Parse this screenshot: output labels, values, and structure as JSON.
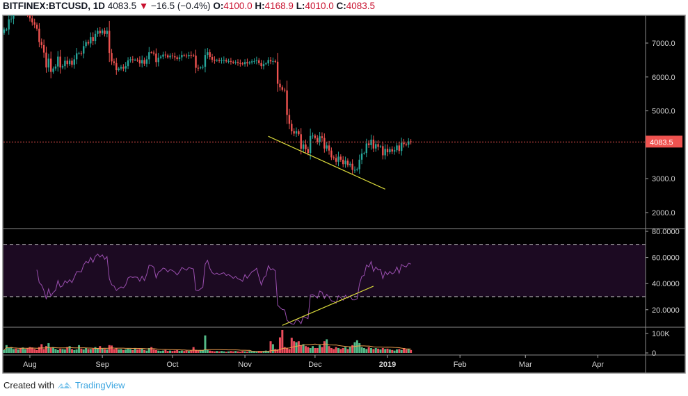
{
  "header": {
    "symbol": "BITFINEX:BTCUSD, 1D",
    "last": "4083.5",
    "change": "−16.5 (−0.4%)",
    "o_label": "O:",
    "o": "4100.0",
    "h_label": "H:",
    "h": "4168.9",
    "l_label": "L:",
    "l": "4010.0",
    "c_label": "C:",
    "c": "4083.5"
  },
  "footer": {
    "created_with": "Created with",
    "brand": "TradingView"
  },
  "colors": {
    "up": "#26a69a",
    "down": "#ef5350",
    "vol_up": "#53b987",
    "vol_down": "#eb4d5c",
    "rsi": "#9b4fb0",
    "rsi_band": "#1c0a22",
    "trendline": "#d8d83a",
    "vol_ma": "#f0a050",
    "background": "#000000"
  },
  "chart_data": [
    {
      "type": "candlestick",
      "pane": "price",
      "interval": "1D",
      "start_date": "2018-07-21",
      "xlim": [
        "2018-07-20",
        "2019-04-20"
      ],
      "ylim": [
        1500,
        7820
      ],
      "first_open": 7300,
      "last_candle": {
        "open": 4100.0,
        "high": 4168.9,
        "low": 4010.0,
        "close": 4083.5
      },
      "closes": [
        7400,
        7400,
        7700,
        7720,
        8200,
        8180,
        8230,
        8200,
        8200,
        8230,
        7940,
        7730,
        7610,
        7540,
        7420,
        7030,
        6940,
        6720,
        6280,
        6540,
        6150,
        6250,
        6310,
        6600,
        6280,
        6320,
        6480,
        6380,
        6480,
        6360,
        6520,
        6700,
        6700,
        6690,
        6910,
        7030,
        6990,
        7180,
        7060,
        7270,
        7360,
        7290,
        7370,
        7270,
        7360,
        6710,
        6460,
        6410,
        6200,
        6250,
        6290,
        6250,
        6320,
        6490,
        6520,
        6500,
        6510,
        6500,
        6400,
        6500,
        6390,
        6520,
        6730,
        6720,
        6690,
        6440,
        6570,
        6600,
        6660,
        6640,
        6580,
        6630,
        6610,
        6580,
        6530,
        6580,
        6650,
        6630,
        6610,
        6650,
        6640,
        6630,
        6270,
        6260,
        6280,
        6300,
        6650,
        6730,
        6590,
        6510,
        6480,
        6500,
        6470,
        6490,
        6500,
        6460,
        6470,
        6450,
        6420,
        6440,
        6410,
        6400,
        6380,
        6440,
        6400,
        6430,
        6460,
        6470,
        6490,
        6410,
        6320,
        6380,
        6400,
        6500,
        6460,
        6470,
        6450,
        5800,
        5700,
        5620,
        5600,
        4880,
        4620,
        4400,
        4330,
        4400,
        4310,
        3880,
        4010,
        3870,
        3760,
        4260,
        4270,
        4200,
        4090,
        4250,
        4200,
        3890,
        3980,
        3830,
        3630,
        3610,
        3500,
        3650,
        3560,
        3430,
        3530,
        3400,
        3440,
        3260,
        3260,
        3280,
        3560,
        3740,
        3760,
        4040,
        3990,
        4150,
        3890,
        4020,
        3940,
        3960,
        3690,
        3880,
        3780,
        3870,
        3800,
        3840,
        3980,
        3820,
        4060,
        4020,
        4000,
        4100,
        4083.5
      ],
      "y_ticks": [
        "7000.0",
        "6000.0",
        "5000.0",
        "3000.0",
        "2000.0"
      ],
      "last_price_label": "4083.5",
      "trendline": {
        "from": {
          "date": "2018-11-11",
          "price": 4250
        },
        "to": {
          "date": "2018-12-31",
          "price": 2690
        }
      }
    },
    {
      "type": "line",
      "pane": "rsi",
      "period": 14,
      "ylim": [
        4,
        83
      ],
      "band": [
        30,
        70
      ],
      "y_ticks": [
        "80.0000",
        "60.0000",
        "40.0000",
        "20.0000"
      ],
      "trendline": {
        "from": {
          "date": "2018-11-17",
          "rsi": 8
        },
        "to": {
          "date": "2018-12-26",
          "rsi": 38
        }
      }
    },
    {
      "type": "bar",
      "pane": "volume",
      "unit": "K",
      "ma_period": 20,
      "values": [
        15,
        40,
        25,
        30,
        20,
        22,
        18,
        25,
        28,
        20,
        25,
        30,
        28,
        20,
        15,
        30,
        45,
        20,
        35,
        50,
        25,
        30,
        20,
        15,
        22,
        20,
        18,
        30,
        35,
        20,
        15,
        18,
        40,
        22,
        18,
        25,
        20,
        20,
        22,
        30,
        25,
        35,
        22,
        20,
        18,
        40,
        38,
        20,
        25,
        18,
        20,
        15,
        18,
        22,
        20,
        15,
        25,
        18,
        20,
        22,
        15,
        12,
        25,
        30,
        18,
        15,
        12,
        10,
        12,
        15,
        10,
        12,
        10,
        12,
        15,
        10,
        12,
        10,
        12,
        10,
        12,
        30,
        15,
        12,
        15,
        15,
        90,
        15,
        12,
        10,
        8,
        10,
        8,
        10,
        8,
        6,
        8,
        10,
        8,
        10,
        8,
        6,
        10,
        8,
        7,
        10,
        8,
        7,
        6,
        10,
        8,
        10,
        12,
        8,
        60,
        45,
        20,
        18,
        80,
        118,
        30,
        25,
        20,
        78,
        60,
        55,
        60,
        40,
        45,
        35,
        30,
        25,
        35,
        25,
        25,
        40,
        30,
        60,
        70,
        35,
        25,
        20,
        30,
        25,
        20,
        25,
        30,
        20,
        30,
        40,
        55,
        65,
        50,
        30,
        25,
        20,
        30,
        25,
        20,
        25,
        22,
        18,
        25,
        20,
        22,
        18,
        15,
        12,
        18,
        20,
        15,
        25,
        18,
        20,
        15
      ],
      "y_ticks": [
        "100K",
        "0"
      ]
    }
  ],
  "x_ticks": [
    {
      "label": "Aug",
      "date": "2018-08-01"
    },
    {
      "label": "Sep",
      "date": "2018-09-01"
    },
    {
      "label": "Oct",
      "date": "2018-10-01"
    },
    {
      "label": "Nov",
      "date": "2018-11-01"
    },
    {
      "label": "Dec",
      "date": "2018-12-01"
    },
    {
      "label": "2019",
      "date": "2019-01-01",
      "bold": true
    },
    {
      "label": "Feb",
      "date": "2019-02-01"
    },
    {
      "label": "Mar",
      "date": "2019-03-01"
    },
    {
      "label": "Apr",
      "date": "2019-04-01"
    }
  ]
}
